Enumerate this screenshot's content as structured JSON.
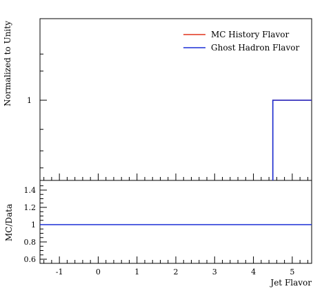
{
  "chart_data": [
    {
      "type": "line",
      "panel": "main",
      "ylabel": "Normalized to Unity",
      "xlim": [
        -1.5,
        5.5
      ],
      "ylog": true,
      "yticks": [
        "1"
      ],
      "legend": {
        "position": "top-right",
        "entries": [
          {
            "name": "MC History Flavor",
            "color": "#e0341c"
          },
          {
            "name": "Ghost Hadron Flavor",
            "color": "#1a2fd6"
          }
        ]
      },
      "series": [
        {
          "name": "MC History Flavor",
          "color": "#e0341c",
          "x": [
            4.5,
            5.5
          ],
          "y": [
            1,
            1
          ]
        },
        {
          "name": "Ghost Hadron Flavor",
          "color": "#1a2fd6",
          "x": [
            4.5,
            5.5
          ],
          "y": [
            1,
            1
          ]
        }
      ]
    },
    {
      "type": "line",
      "panel": "ratio",
      "ylabel": "MC/Data",
      "xlabel": "Jet Flavor",
      "xlim": [
        -1.5,
        5.5
      ],
      "ylim": [
        0.5,
        1.5
      ],
      "yticks": [
        "0.6",
        "0.8",
        "1",
        "1.2",
        "1.4"
      ],
      "xticks": [
        "-1",
        "0",
        "1",
        "2",
        "3",
        "4",
        "5"
      ],
      "series": [
        {
          "color": "#1a2fd6",
          "x": [
            -1.5,
            5.5
          ],
          "y": [
            1,
            1
          ]
        }
      ]
    }
  ]
}
